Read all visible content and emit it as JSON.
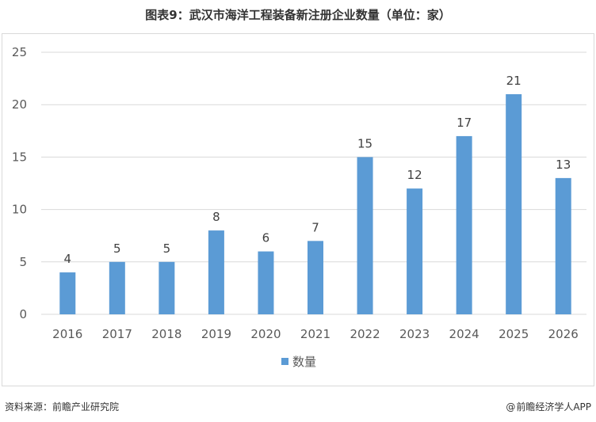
{
  "title": "图表9：武汉市海洋工程装备新注册企业数量（单位：家）",
  "footer": {
    "source": "资料来源：前瞻产业研究院",
    "brand": "前瞻经济学人APP",
    "brand_icon": "at-icon"
  },
  "colors": {
    "bar": "#5b9bd5",
    "grid": "#d9d9d9",
    "text": "#595959"
  },
  "chart_data": {
    "type": "bar",
    "categories": [
      "2016",
      "2017",
      "2018",
      "2019",
      "2020",
      "2021",
      "2022",
      "2023",
      "2024",
      "2025",
      "2026"
    ],
    "series": [
      {
        "name": "数量",
        "values": [
          4,
          5,
          5,
          8,
          6,
          7,
          15,
          12,
          17,
          21,
          13
        ]
      }
    ],
    "ylim": [
      0,
      25
    ],
    "yticks": [
      0,
      5,
      10,
      15,
      20,
      25
    ],
    "grid": true,
    "legend_position": "bottom",
    "data_labels": true,
    "title": "",
    "xlabel": "",
    "ylabel": ""
  }
}
